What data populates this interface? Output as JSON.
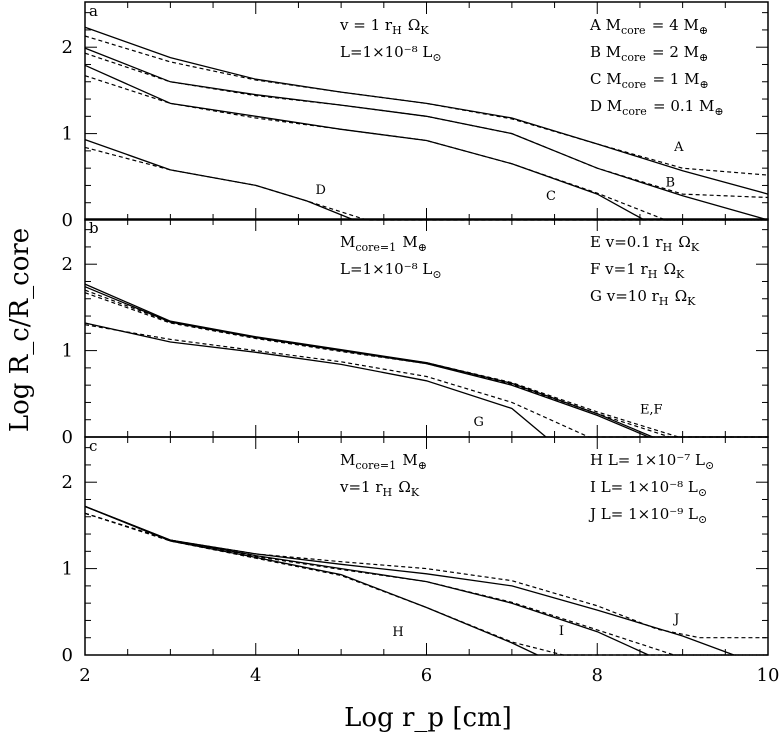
{
  "figure": {
    "xlabel": "Log r_p [cm]",
    "ylabel": "Log R_c/R_core",
    "xlim": [
      2,
      10
    ],
    "ylim": [
      0,
      2.5
    ],
    "x_ticks": [
      "2",
      "4",
      "6",
      "8",
      "10"
    ],
    "y_ticks": [
      "0",
      "1",
      "2"
    ]
  },
  "chart_data": [
    {
      "type": "line",
      "panel": "a",
      "legend_left": [
        "v = 1 r_H Ω_K",
        "L=1×10⁻⁸ L_⊙"
      ],
      "legend_right": [
        "A M_core = 4 M_⊕",
        "B M_core = 2 M_⊕",
        "C M_core = 1 M_⊕",
        "D M_core = 0.1 M_⊕"
      ],
      "series": [
        {
          "name": "A",
          "label_pos": [
            8.9,
            0.8
          ],
          "solid": [
            [
              2,
              2.23
            ],
            [
              3,
              1.88
            ],
            [
              4,
              1.63
            ],
            [
              5,
              1.48
            ],
            [
              6,
              1.35
            ],
            [
              7,
              1.18
            ],
            [
              8,
              0.88
            ],
            [
              9,
              0.57
            ],
            [
              10,
              0.3
            ]
          ],
          "dashed": [
            [
              2,
              2.13
            ],
            [
              3,
              1.83
            ],
            [
              4,
              1.62
            ],
            [
              5,
              1.48
            ],
            [
              6,
              1.35
            ],
            [
              7,
              1.17
            ],
            [
              8,
              0.88
            ],
            [
              9,
              0.6
            ],
            [
              10,
              0.52
            ]
          ]
        },
        {
          "name": "B",
          "label_pos": [
            8.8,
            0.39
          ],
          "solid": [
            [
              2,
              1.99
            ],
            [
              3,
              1.6
            ],
            [
              4,
              1.45
            ],
            [
              5,
              1.33
            ],
            [
              6,
              1.2
            ],
            [
              7,
              1.0
            ],
            [
              8,
              0.6
            ],
            [
              9,
              0.28
            ],
            [
              10,
              0.0
            ]
          ],
          "dashed": [
            [
              2,
              1.93
            ],
            [
              3,
              1.6
            ],
            [
              4,
              1.44
            ],
            [
              5,
              1.33
            ],
            [
              6,
              1.2
            ],
            [
              7,
              1.0
            ],
            [
              8,
              0.6
            ],
            [
              9,
              0.3
            ],
            [
              10,
              0.26
            ]
          ]
        },
        {
          "name": "C",
          "label_pos": [
            7.4,
            0.23
          ],
          "solid": [
            [
              2,
              1.79
            ],
            [
              3,
              1.35
            ],
            [
              4,
              1.2
            ],
            [
              5,
              1.05
            ],
            [
              6,
              0.92
            ],
            [
              7,
              0.65
            ],
            [
              8,
              0.3
            ],
            [
              8.55,
              0.0
            ]
          ],
          "dashed": [
            [
              2,
              1.67
            ],
            [
              3,
              1.35
            ],
            [
              4,
              1.18
            ],
            [
              5,
              1.05
            ],
            [
              6,
              0.92
            ],
            [
              7,
              0.65
            ],
            [
              8,
              0.31
            ],
            [
              8.8,
              0.0
            ],
            [
              10,
              0.0
            ]
          ]
        },
        {
          "name": "D",
          "label_pos": [
            4.7,
            0.3
          ],
          "solid": [
            [
              2,
              0.93
            ],
            [
              3,
              0.58
            ],
            [
              4,
              0.4
            ],
            [
              4.6,
              0.22
            ],
            [
              5.15,
              0.0
            ]
          ],
          "dashed": [
            [
              2,
              0.84
            ],
            [
              3,
              0.58
            ],
            [
              4,
              0.4
            ],
            [
              4.6,
              0.22
            ],
            [
              5.3,
              0.0
            ],
            [
              10,
              0.0
            ]
          ]
        }
      ]
    },
    {
      "type": "line",
      "panel": "b",
      "legend_left": [
        "M_core=1 M_⊕",
        "L=1×10⁻⁸ L_⊙"
      ],
      "legend_right": [
        "E v=0.1 r_H Ω_K",
        "F v=1 r_H Ω_K",
        "G v=10 r_H Ω_K"
      ],
      "series": [
        {
          "name": "E,F",
          "label_pos": [
            8.5,
            0.27
          ],
          "solid": [
            [
              2,
              1.74
            ],
            [
              3,
              1.33
            ],
            [
              4,
              1.15
            ],
            [
              5,
              1.0
            ],
            [
              6,
              0.85
            ],
            [
              7,
              0.6
            ],
            [
              8,
              0.25
            ],
            [
              8.6,
              0.0
            ]
          ],
          "dashed": [
            [
              2,
              1.67
            ],
            [
              3,
              1.32
            ],
            [
              4,
              1.14
            ],
            [
              5,
              0.99
            ],
            [
              6,
              0.85
            ],
            [
              7,
              0.61
            ],
            [
              8,
              0.27
            ],
            [
              8.85,
              0.0
            ],
            [
              10,
              0.0
            ]
          ]
        },
        {
          "name": "E",
          "label_pos": null,
          "solid": [
            [
              2,
              1.77
            ],
            [
              3,
              1.34
            ],
            [
              4,
              1.16
            ],
            [
              5,
              1.01
            ],
            [
              6,
              0.86
            ],
            [
              7,
              0.62
            ],
            [
              8,
              0.27
            ],
            [
              8.65,
              0.0
            ]
          ],
          "dashed": [
            [
              2,
              1.7
            ],
            [
              3,
              1.33
            ],
            [
              4,
              1.15
            ],
            [
              5,
              1.0
            ],
            [
              6,
              0.86
            ],
            [
              7,
              0.63
            ],
            [
              8,
              0.29
            ],
            [
              8.95,
              0.0
            ],
            [
              10,
              0.0
            ]
          ]
        },
        {
          "name": "G",
          "label_pos": [
            6.55,
            0.13
          ],
          "solid": [
            [
              2,
              1.32
            ],
            [
              3,
              1.1
            ],
            [
              4,
              0.98
            ],
            [
              5,
              0.84
            ],
            [
              6,
              0.65
            ],
            [
              7,
              0.33
            ],
            [
              7.4,
              0.0
            ]
          ],
          "dashed": [
            [
              2,
              1.3
            ],
            [
              3,
              1.13
            ],
            [
              4,
              1.0
            ],
            [
              5,
              0.87
            ],
            [
              6,
              0.7
            ],
            [
              7,
              0.4
            ],
            [
              7.9,
              0.0
            ],
            [
              10,
              0.0
            ]
          ]
        }
      ]
    },
    {
      "type": "line",
      "panel": "c",
      "legend_left": [
        "M_core=1 M_⊕",
        "v=1 r_H Ω_K"
      ],
      "legend_right": [
        "H L= 1×10⁻⁷ L_⊙",
        "I L= 1×10⁻⁸ L_⊙",
        "J L= 1×10⁻⁹ L_⊙"
      ],
      "series": [
        {
          "name": "H",
          "label_pos": [
            5.6,
            0.22
          ],
          "solid": [
            [
              2,
              1.72
            ],
            [
              3,
              1.32
            ],
            [
              4,
              1.13
            ],
            [
              5,
              0.93
            ],
            [
              6,
              0.55
            ],
            [
              7,
              0.14
            ],
            [
              7.3,
              0.0
            ]
          ],
          "dashed": [
            [
              2,
              1.64
            ],
            [
              3,
              1.32
            ],
            [
              4,
              1.12
            ],
            [
              5,
              0.92
            ],
            [
              6,
              0.55
            ],
            [
              7,
              0.15
            ],
            [
              7.6,
              0.0
            ],
            [
              10,
              0.0
            ]
          ]
        },
        {
          "name": "I",
          "label_pos": [
            7.55,
            0.23
          ],
          "solid": [
            [
              2,
              1.72
            ],
            [
              3,
              1.33
            ],
            [
              4,
              1.15
            ],
            [
              5,
              1.0
            ],
            [
              6,
              0.85
            ],
            [
              7,
              0.6
            ],
            [
              8,
              0.27
            ],
            [
              8.6,
              0.0
            ]
          ],
          "dashed": [
            [
              2,
              1.64
            ],
            [
              3,
              1.33
            ],
            [
              4,
              1.14
            ],
            [
              5,
              0.99
            ],
            [
              6,
              0.85
            ],
            [
              7,
              0.61
            ],
            [
              8,
              0.29
            ],
            [
              8.9,
              0.0
            ],
            [
              10,
              0.0
            ]
          ]
        },
        {
          "name": "J",
          "label_pos": [
            8.9,
            0.37
          ],
          "solid": [
            [
              2,
              1.72
            ],
            [
              3,
              1.33
            ],
            [
              4,
              1.17
            ],
            [
              5,
              1.05
            ],
            [
              6,
              0.94
            ],
            [
              7,
              0.8
            ],
            [
              8,
              0.52
            ],
            [
              9,
              0.22
            ],
            [
              9.6,
              0.0
            ]
          ],
          "dashed": [
            [
              2,
              1.64
            ],
            [
              3,
              1.33
            ],
            [
              4,
              1.17
            ],
            [
              5,
              1.08
            ],
            [
              6,
              1.0
            ],
            [
              7,
              0.86
            ],
            [
              8,
              0.57
            ],
            [
              8.7,
              0.3
            ],
            [
              9.2,
              0.2
            ],
            [
              10,
              0.2
            ]
          ]
        }
      ]
    }
  ]
}
